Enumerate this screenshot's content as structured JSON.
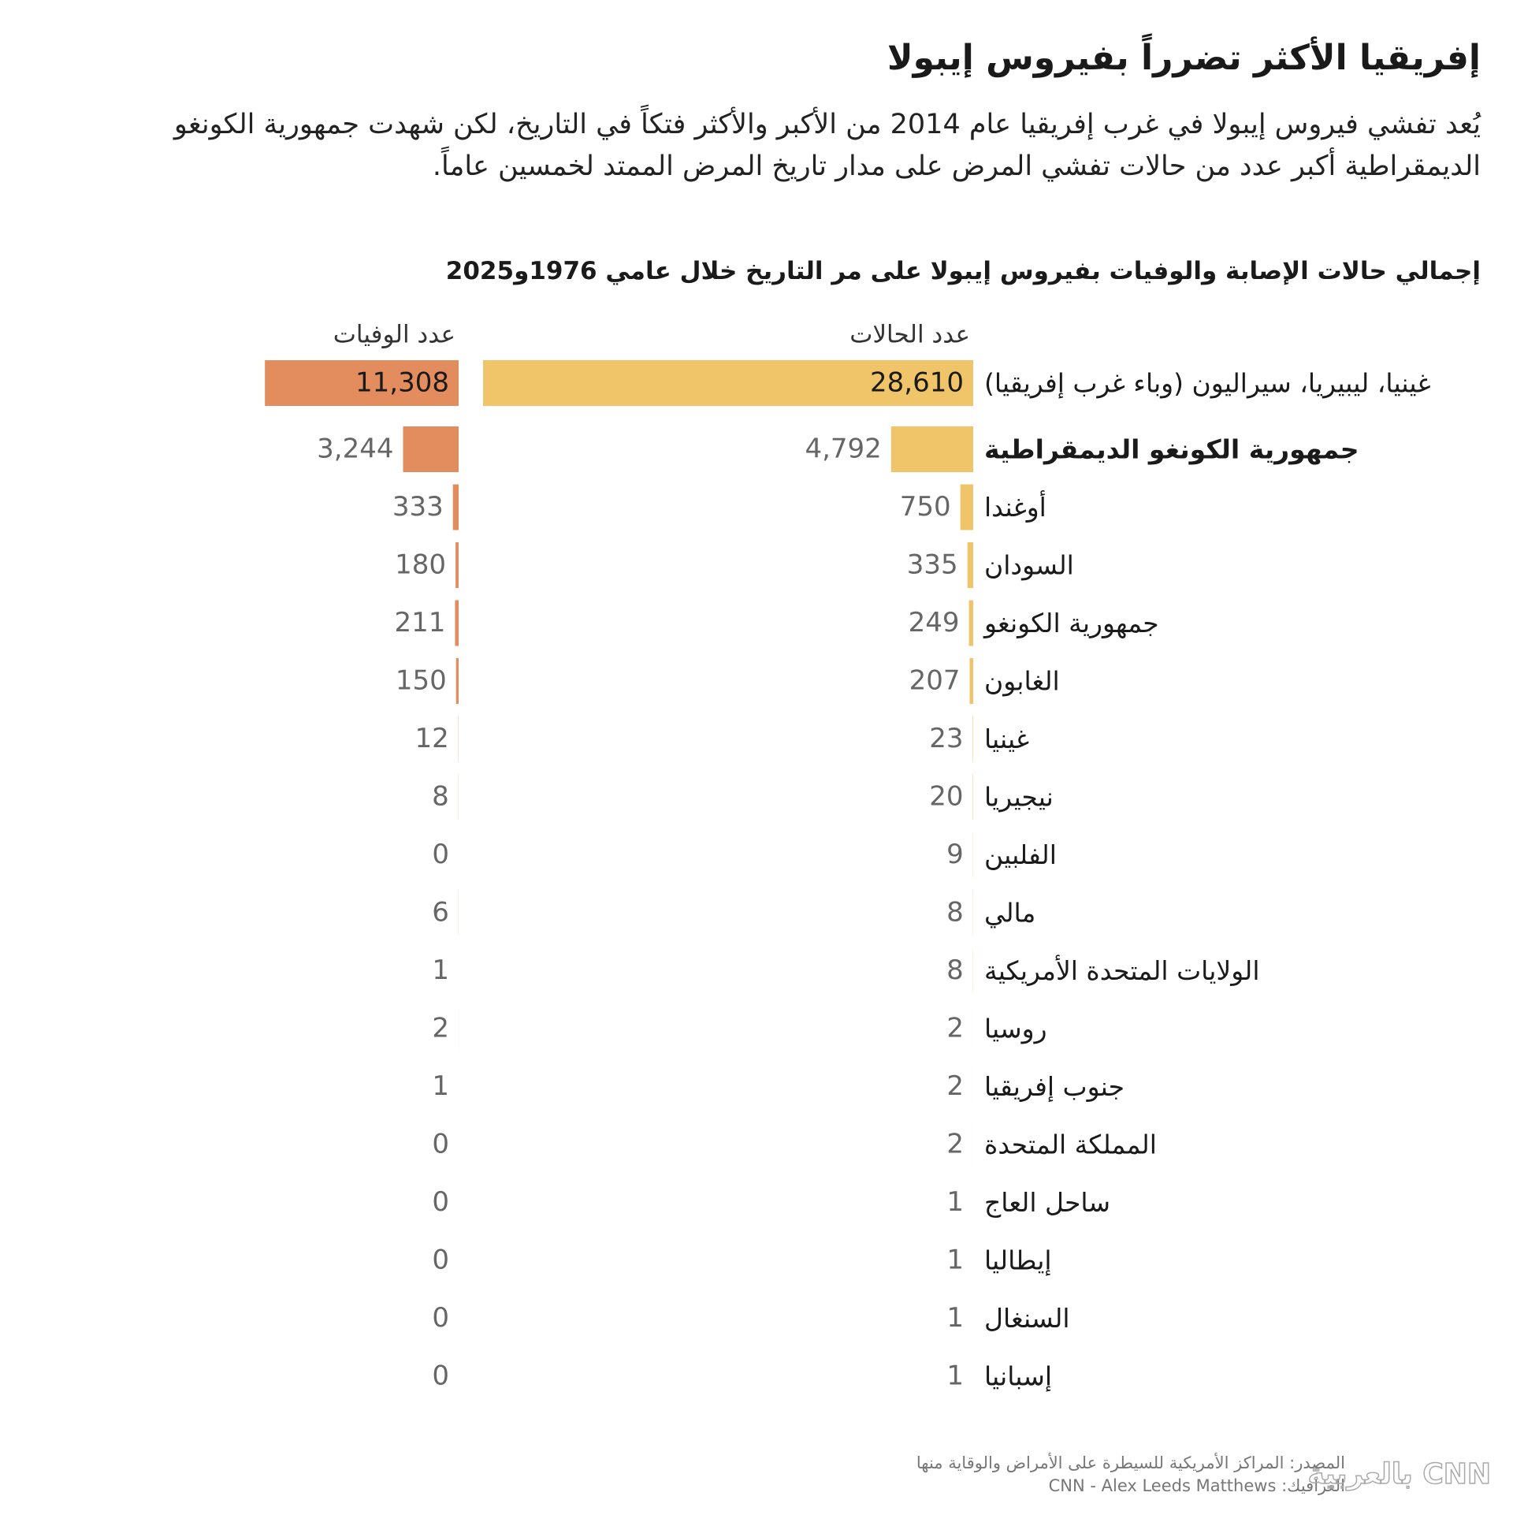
{
  "chart_data": {
    "type": "bar",
    "title": "إفريقيا الأكثر تضرراً بفيروس إيبولا",
    "subtitle": "يُعد تفشي فيروس إيبولا في غرب إفريقيا عام 2014 من الأكبر والأكثر فتكاً في التاريخ، لكن شهدت جمهورية الكونغو الديمقراطية أكبر عدد من حالات تفشي المرض على مدار تاريخ المرض الممتد لخمسين عاماً.",
    "chart_title": "إجمالي حالات الإصابة والوفيات بفيروس إيبولا على مر التاريخ خلال عامي 1976و2025",
    "categories": [
      "غينيا، ليبيريا، سيراليون (وباء غرب إفريقيا)",
      "جمهورية الكونغو الديمقراطية",
      "أوغندا",
      "السودان",
      "جمهورية الكونغو",
      "الغابون",
      "غينيا",
      "نيجيريا",
      "الفلبين",
      "مالي",
      "الولايات المتحدة الأمريكية",
      "روسيا",
      "جنوب إفريقيا",
      "المملكة المتحدة",
      "ساحل العاج",
      "إيطاليا",
      "السنغال",
      "إسبانيا"
    ],
    "highlight_category": 1,
    "series": [
      {
        "name": "عدد الحالات",
        "color": "#f0c468",
        "values": [
          28610,
          4792,
          750,
          335,
          249,
          207,
          23,
          20,
          9,
          8,
          8,
          2,
          2,
          2,
          1,
          1,
          1,
          1
        ],
        "value_labels": [
          "28,610",
          "4,792",
          "750",
          "335",
          "249",
          "207",
          "23",
          "20",
          "9",
          "8",
          "8",
          "2",
          "2",
          "2",
          "1",
          "1",
          "1",
          "1"
        ]
      },
      {
        "name": "عدد الوفيات",
        "color": "#e38c5e",
        "values": [
          11308,
          3244,
          333,
          180,
          211,
          150,
          12,
          8,
          0,
          6,
          1,
          2,
          1,
          0,
          0,
          0,
          0,
          0
        ],
        "value_labels": [
          "11,308",
          "3,244",
          "333",
          "180",
          "211",
          "150",
          "12",
          "8",
          "0",
          "6",
          "1",
          "2",
          "1",
          "0",
          "0",
          "0",
          "0",
          "0"
        ]
      }
    ],
    "source": "المصدر: المراكز الأمريكية للسيطرة على الأمراض والوقاية منها",
    "credit": "الغرافيك: CNN - Alex Leeds Matthews",
    "logo": "CNN بالعربية"
  }
}
